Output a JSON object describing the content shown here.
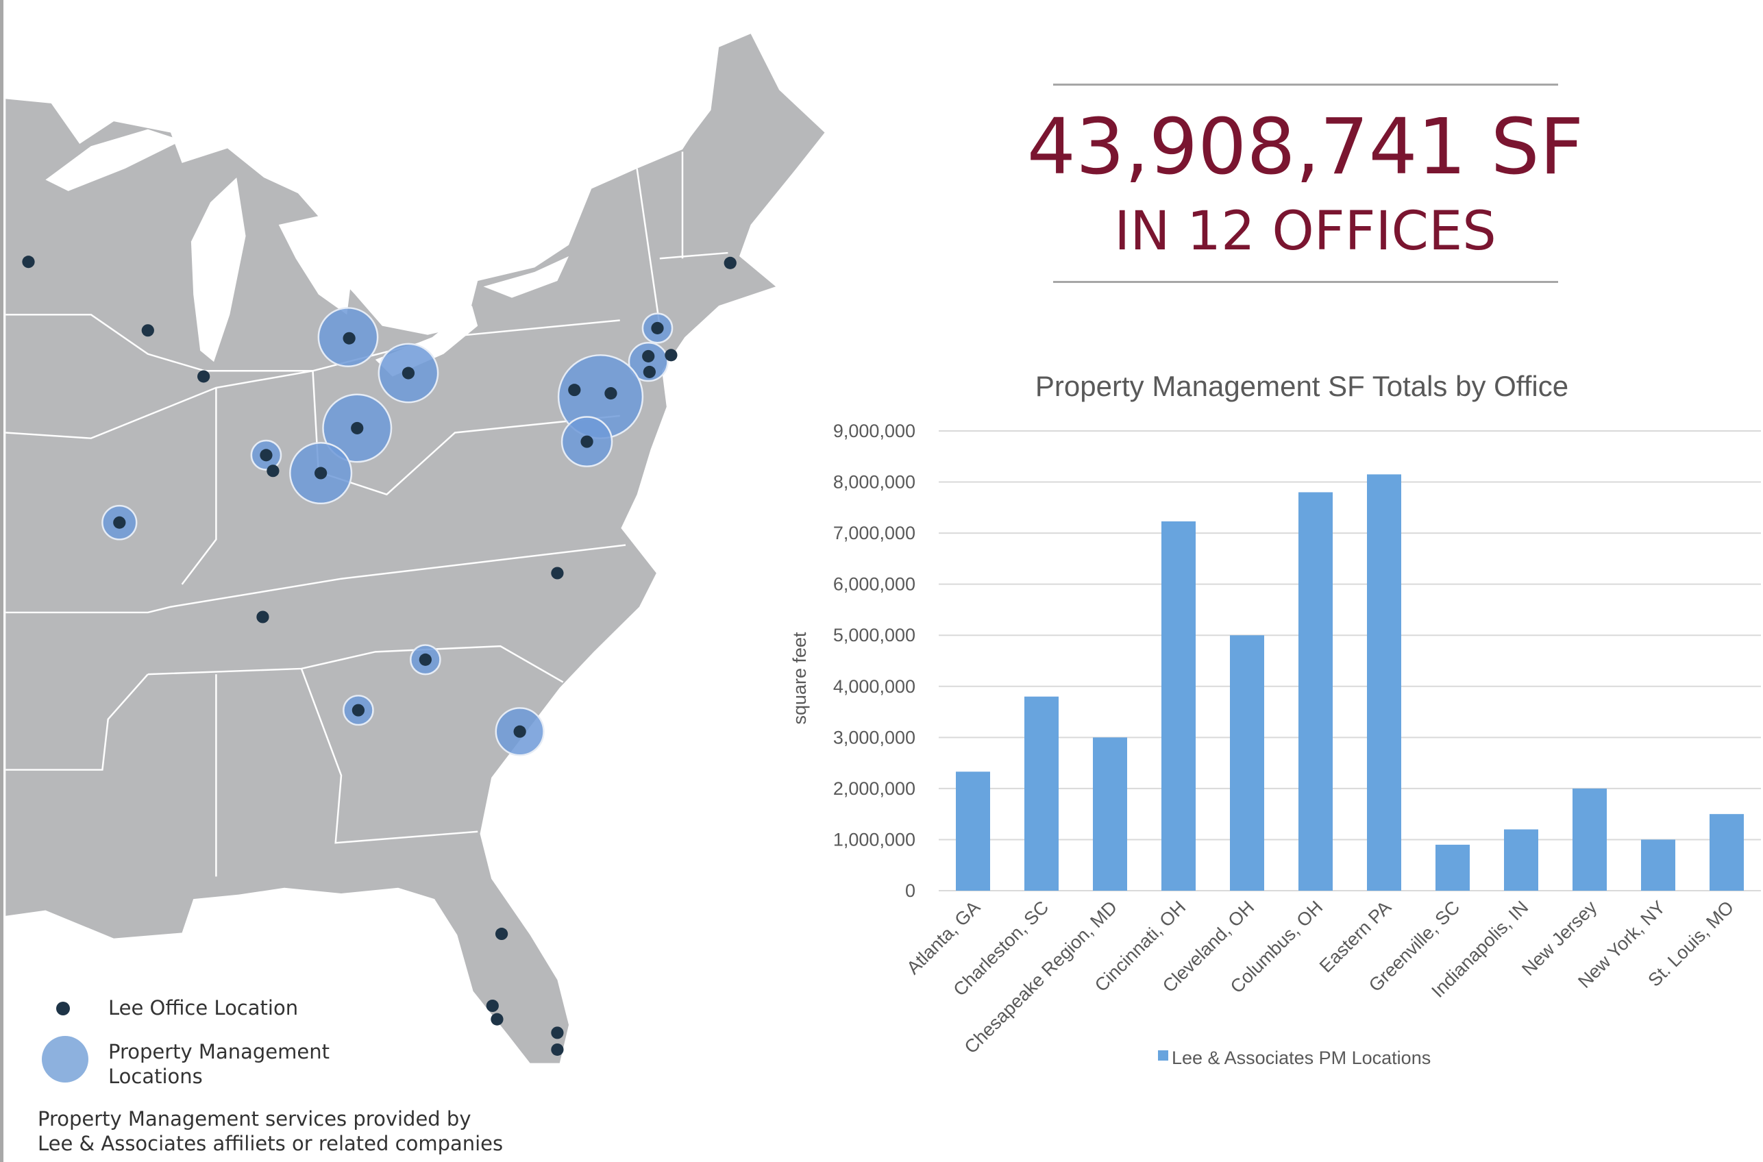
{
  "headline": {
    "total_sf": "43,908,741 SF",
    "offices": "IN 12 OFFICES"
  },
  "map_legend": {
    "office_label": "Lee Office Location",
    "pm_label_line1": "Property Management",
    "pm_label_line2": "Locations",
    "office_color": "#1e3447",
    "pm_color": "#7fa6da",
    "footnote_line1": "Property Management services provided by",
    "footnote_line2": "Lee & Associates affiliets or related companies"
  },
  "chart_data": {
    "type": "bar",
    "title": "Property Management SF Totals by Office",
    "ylabel": "square feet",
    "xlabel": "",
    "ylim": [
      0,
      9000000
    ],
    "yticks": [
      "0",
      "1,000,000",
      "2,000,000",
      "3,000,000",
      "4,000,000",
      "5,000,000",
      "6,000,000",
      "7,000,000",
      "8,000,000",
      "9,000,000"
    ],
    "grid": true,
    "legend_position": "bottom",
    "bar_color": "#68a4de",
    "categories": [
      "Atlanta, GA",
      "Charleston, SC",
      "Chesapeake Region, MD",
      "Cincinnati, OH",
      "Cleveland, OH",
      "Columbus, OH",
      "Eastern PA",
      "Greenville, SC",
      "Indianapolis, IN",
      "New Jersey",
      "New York, NY",
      "St. Louis, MO"
    ],
    "series": [
      {
        "name": "Lee & Associates PM Locations",
        "values": [
          2330000,
          3800000,
          3000000,
          7230000,
          5000000,
          7800000,
          8150000,
          900000,
          1200000,
          2000000,
          1000000,
          1500000
        ]
      }
    ]
  }
}
